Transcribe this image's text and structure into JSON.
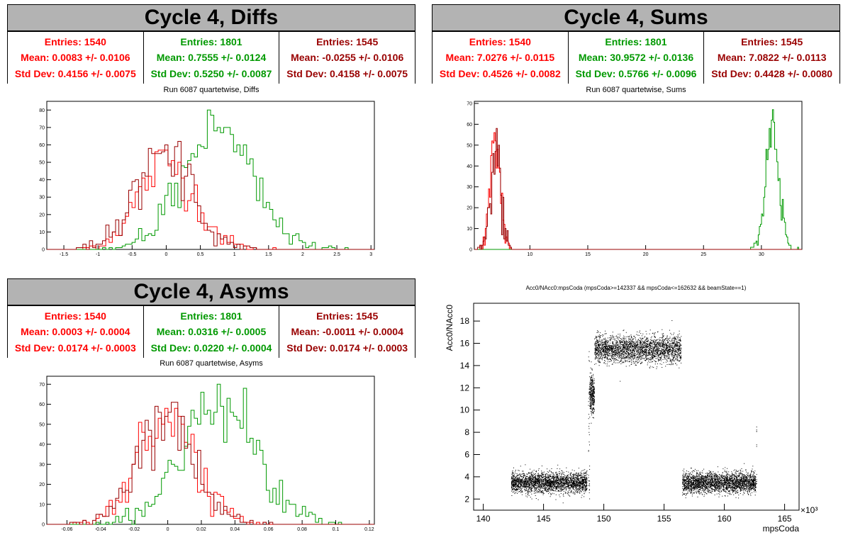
{
  "panels": {
    "diffs": {
      "title": "Cycle 4, Diffs",
      "subtitle": "Run 6087 quartetwise, Diffs",
      "stats": [
        {
          "entries": "Entries: 1540",
          "mean": "Mean: 0.0083 +/- 0.0106",
          "std": "Std Dev: 0.4156 +/- 0.0075",
          "color": "#ff0000"
        },
        {
          "entries": "Entries: 1801",
          "mean": "Mean: 0.7555 +/- 0.0124",
          "std": "Std Dev: 0.5250 +/- 0.0087",
          "color": "#009900"
        },
        {
          "entries": "Entries: 1545",
          "mean": "Mean: -0.0255 +/- 0.0106",
          "std": "Std Dev: 0.4158 +/- 0.0075",
          "color": "#990000"
        }
      ]
    },
    "sums": {
      "title": "Cycle 4, Sums",
      "subtitle": "Run 6087 quartetwise, Sums",
      "stats": [
        {
          "entries": "Entries: 1540",
          "mean": "Mean: 7.0276 +/- 0.0115",
          "std": "Std Dev: 0.4526 +/- 0.0082",
          "color": "#ff0000"
        },
        {
          "entries": "Entries: 1801",
          "mean": "Mean: 30.9572 +/- 0.0136",
          "std": "Std Dev: 0.5766 +/- 0.0096",
          "color": "#009900"
        },
        {
          "entries": "Entries: 1545",
          "mean": "Mean: 7.0822 +/- 0.0113",
          "std": "Std Dev: 0.4428 +/- 0.0080",
          "color": "#990000"
        }
      ]
    },
    "asyms": {
      "title": "Cycle 4, Asyms",
      "subtitle": "Run 6087 quartetwise, Asyms",
      "stats": [
        {
          "entries": "Entries: 1540",
          "mean": "Mean: 0.0003 +/- 0.0004",
          "std": "Std Dev: 0.0174 +/- 0.0003",
          "color": "#ff0000"
        },
        {
          "entries": "Entries: 1801",
          "mean": "Mean: 0.0316 +/- 0.0005",
          "std": "Std Dev: 0.0220 +/- 0.0004",
          "color": "#009900"
        },
        {
          "entries": "Entries: 1545",
          "mean": "Mean: -0.0011 +/- 0.0004",
          "std": "Std Dev: 0.0174 +/- 0.0003",
          "color": "#990000"
        }
      ]
    },
    "scatter": {
      "title": "Acc0/NAcc0:mpsCoda (mpsCoda>=142337 && mpsCoda<=162632 && beamState==1)",
      "xlabel": "mpsCoda",
      "ylabel": "Acc0/NAcc0",
      "xexp": "×10³"
    }
  },
  "chart_data": [
    {
      "type": "histogram",
      "name": "diffs",
      "xlim": [
        -1.75,
        3.05
      ],
      "ylim": [
        0,
        85
      ],
      "xticks": [
        -1.5,
        -1,
        -0.5,
        0,
        0.5,
        1,
        1.5,
        2,
        2.5,
        3
      ],
      "yticks": [
        0,
        10,
        20,
        30,
        40,
        50,
        60,
        70,
        80
      ],
      "series": [
        {
          "color": "#ff0000",
          "mean": 0.0083,
          "std": 0.4156,
          "peak": 57
        },
        {
          "color": "#009900",
          "mean": 0.7555,
          "std": 0.525,
          "peak": 80
        },
        {
          "color": "#990000",
          "mean": -0.0255,
          "std": 0.4158,
          "peak": 62
        }
      ]
    },
    {
      "type": "histogram",
      "name": "sums",
      "xlim": [
        5.2,
        33.5
      ],
      "ylim": [
        0,
        71
      ],
      "xticks": [
        10,
        15,
        20,
        25,
        30
      ],
      "yticks": [
        0,
        10,
        20,
        30,
        40,
        50,
        60,
        70
      ],
      "series": [
        {
          "color": "#ff0000",
          "mean": 7.0276,
          "std": 0.4526,
          "peak": 56
        },
        {
          "color": "#009900",
          "mean": 30.9572,
          "std": 0.5766,
          "peak": 67
        },
        {
          "color": "#990000",
          "mean": 7.0822,
          "std": 0.4428,
          "peak": 58
        }
      ]
    },
    {
      "type": "histogram",
      "name": "asyms",
      "xlim": [
        -0.072,
        0.123
      ],
      "ylim": [
        0,
        74
      ],
      "xticks": [
        -0.06,
        -0.04,
        -0.02,
        0,
        0.02,
        0.04,
        0.06,
        0.08,
        0.1,
        0.12
      ],
      "yticks": [
        0,
        10,
        20,
        30,
        40,
        50,
        60,
        70
      ],
      "series": [
        {
          "color": "#ff0000",
          "mean": 0.0003,
          "std": 0.0174,
          "peak": 58
        },
        {
          "color": "#009900",
          "mean": 0.0316,
          "std": 0.022,
          "peak": 70
        },
        {
          "color": "#990000",
          "mean": -0.0011,
          "std": 0.0174,
          "peak": 61
        }
      ]
    },
    {
      "type": "scatter",
      "name": "scatter",
      "xlim": [
        139.2,
        166.2
      ],
      "ylim": [
        1,
        19.6
      ],
      "xticks": [
        140,
        145,
        150,
        155,
        160,
        165
      ],
      "yticks": [
        2,
        4,
        6,
        8,
        10,
        12,
        14,
        16,
        18
      ],
      "clusters": [
        {
          "x": [
            142.3,
            148.6
          ],
          "y": 3.5,
          "spread": 0.45
        },
        {
          "x": [
            148.8,
            149.2
          ],
          "y": 11.5,
          "spread": 0.9
        },
        {
          "x": [
            149.2,
            156.4
          ],
          "y": 15.5,
          "spread": 0.6
        },
        {
          "x": [
            156.5,
            162.6
          ],
          "y": 3.5,
          "spread": 0.45
        }
      ]
    }
  ]
}
